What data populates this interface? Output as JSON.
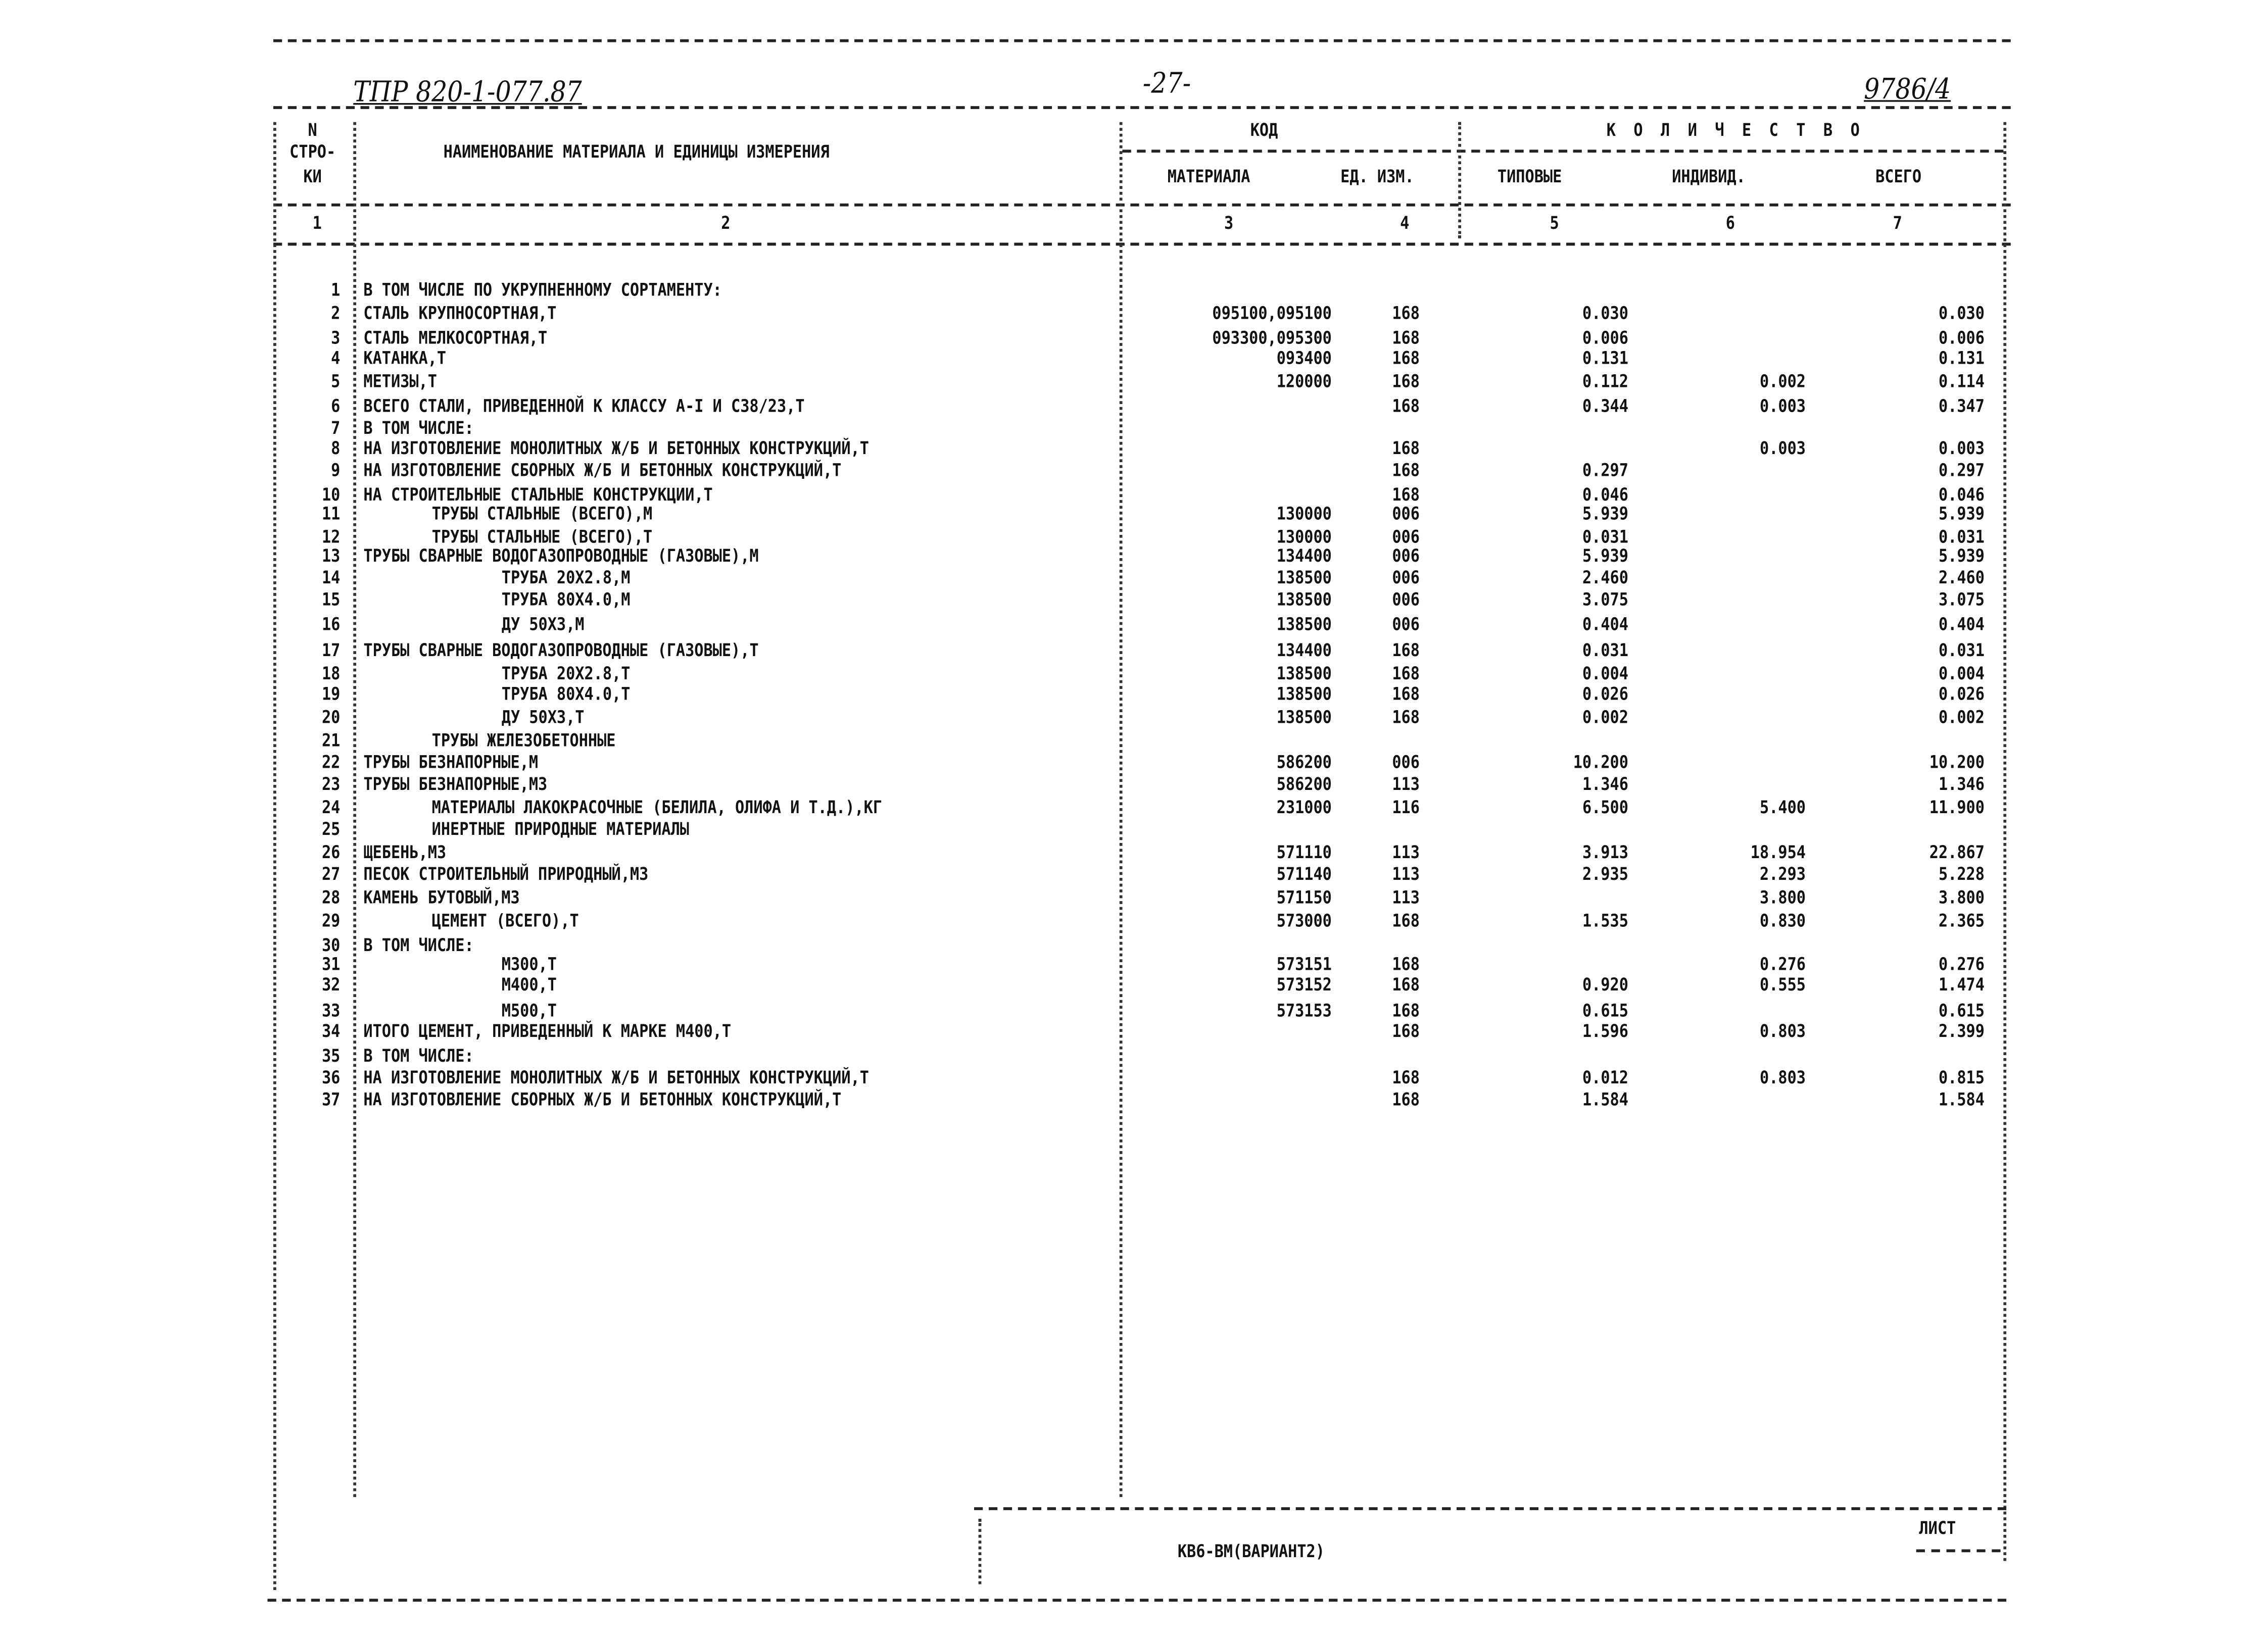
{
  "header": {
    "doc_number": "ТПР 820-1-077.87",
    "page": "-27-",
    "sheet_ref": "9786/4"
  },
  "columns": {
    "num": [
      "N",
      "СТРО-",
      "КИ"
    ],
    "name": "НАИМЕНОВАНИЕ МАТЕРИАЛА И ЕДИНИЦЫ ИЗМЕРЕНИЯ",
    "code": "КОД",
    "quantity": "К О Л И Ч Е С Т В О",
    "material": "МАТЕРИАЛА",
    "unit": "ЕД. ИЗМ.",
    "typical": "ТИПОВЫЕ",
    "individual": "ИНДИВИД.",
    "total": "ВСЕГО",
    "numbers": [
      "1",
      "2",
      "3",
      "4",
      "5",
      "6",
      "7"
    ]
  },
  "rows": [
    {
      "n": "1",
      "name": "В ТОМ ЧИСЛЕ ПО УКРУПНЕННОМУ СОРТАМЕНТУ:",
      "lvl": 0,
      "code": "",
      "unit": "",
      "typ": "",
      "ind": "",
      "tot": ""
    },
    {
      "n": "2",
      "name": "СТАЛЬ КРУПНОСОРТНАЯ,Т",
      "lvl": 0,
      "code": "095100,095100",
      "unit": "168",
      "typ": "0.030",
      "ind": "",
      "tot": "0.030"
    },
    {
      "n": "3",
      "name": "СТАЛЬ МЕЛКОСОРТНАЯ,Т",
      "lvl": 0,
      "code": "093300,095300",
      "unit": "168",
      "typ": "0.006",
      "ind": "",
      "tot": "0.006"
    },
    {
      "n": "4",
      "name": "КАТАНКА,Т",
      "lvl": 0,
      "code": "093400",
      "unit": "168",
      "typ": "0.131",
      "ind": "",
      "tot": "0.131"
    },
    {
      "n": "5",
      "name": "МЕТИЗЫ,Т",
      "lvl": 0,
      "code": "120000",
      "unit": "168",
      "typ": "0.112",
      "ind": "0.002",
      "tot": "0.114"
    },
    {
      "n": "6",
      "name": "ВСЕГО СТАЛИ, ПРИВЕДЕННОЙ К КЛАССУ А-I И С38/23,Т",
      "lvl": 0,
      "code": "",
      "unit": "168",
      "typ": "0.344",
      "ind": "0.003",
      "tot": "0.347"
    },
    {
      "n": "7",
      "name": "В ТОМ ЧИСЛЕ:",
      "lvl": 0,
      "code": "",
      "unit": "",
      "typ": "",
      "ind": "",
      "tot": ""
    },
    {
      "n": "8",
      "name": "НА ИЗГОТОВЛЕНИЕ МОНОЛИТНЫХ Ж/Б И БЕТОННЫХ КОНСТРУКЦИЙ,Т",
      "lvl": 0,
      "code": "",
      "unit": "168",
      "typ": "",
      "ind": "0.003",
      "tot": "0.003"
    },
    {
      "n": "9",
      "name": "НА ИЗГОТОВЛЕНИЕ СБОРНЫХ Ж/Б И БЕТОННЫХ КОНСТРУКЦИЙ,Т",
      "lvl": 0,
      "code": "",
      "unit": "168",
      "typ": "0.297",
      "ind": "",
      "tot": "0.297"
    },
    {
      "n": "10",
      "name": "НА СТРОИТЕЛЬНЫЕ СТАЛЬНЫЕ КОНСТРУКЦИИ,Т",
      "lvl": 0,
      "code": "",
      "unit": "168",
      "typ": "0.046",
      "ind": "",
      "tot": "0.046"
    },
    {
      "n": "11",
      "name": "ТРУБЫ СТАЛЬНЫЕ (ВСЕГО),М",
      "lvl": 1,
      "code": "130000",
      "unit": "006",
      "typ": "5.939",
      "ind": "",
      "tot": "5.939"
    },
    {
      "n": "12",
      "name": "ТРУБЫ СТАЛЬНЫЕ (ВСЕГО),Т",
      "lvl": 1,
      "code": "130000",
      "unit": "006",
      "typ": "0.031",
      "ind": "",
      "tot": "0.031"
    },
    {
      "n": "13",
      "name": "ТРУБЫ СВАРНЫЕ ВОДОГАЗОПРОВОДНЫЕ (ГАЗОВЫЕ),М",
      "lvl": 0,
      "code": "134400",
      "unit": "006",
      "typ": "5.939",
      "ind": "",
      "tot": "5.939"
    },
    {
      "n": "14",
      "name": "ТРУБА 20Х2.8,М",
      "lvl": 2,
      "code": "138500",
      "unit": "006",
      "typ": "2.460",
      "ind": "",
      "tot": "2.460"
    },
    {
      "n": "15",
      "name": "ТРУБА 80Х4.0,М",
      "lvl": 2,
      "code": "138500",
      "unit": "006",
      "typ": "3.075",
      "ind": "",
      "tot": "3.075"
    },
    {
      "n": "16",
      "name": "ДУ 50Х3,М",
      "lvl": 2,
      "code": "138500",
      "unit": "006",
      "typ": "0.404",
      "ind": "",
      "tot": "0.404"
    },
    {
      "n": "17",
      "name": "ТРУБЫ СВАРНЫЕ ВОДОГАЗОПРОВОДНЫЕ (ГАЗОВЫЕ),Т",
      "lvl": 0,
      "code": "134400",
      "unit": "168",
      "typ": "0.031",
      "ind": "",
      "tot": "0.031"
    },
    {
      "n": "18",
      "name": "ТРУБА 20Х2.8,Т",
      "lvl": 2,
      "code": "138500",
      "unit": "168",
      "typ": "0.004",
      "ind": "",
      "tot": "0.004"
    },
    {
      "n": "19",
      "name": "ТРУБА 80Х4.0,Т",
      "lvl": 2,
      "code": "138500",
      "unit": "168",
      "typ": "0.026",
      "ind": "",
      "tot": "0.026"
    },
    {
      "n": "20",
      "name": "ДУ 50Х3,Т",
      "lvl": 2,
      "code": "138500",
      "unit": "168",
      "typ": "0.002",
      "ind": "",
      "tot": "0.002"
    },
    {
      "n": "21",
      "name": "ТРУБЫ ЖЕЛЕЗОБЕТОННЫЕ",
      "lvl": 1,
      "code": "",
      "unit": "",
      "typ": "",
      "ind": "",
      "tot": ""
    },
    {
      "n": "22",
      "name": "ТРУБЫ БЕЗНАПОРНЫЕ,М",
      "lvl": 0,
      "code": "586200",
      "unit": "006",
      "typ": "10.200",
      "ind": "",
      "tot": "10.200"
    },
    {
      "n": "23",
      "name": "ТРУБЫ БЕЗНАПОРНЫЕ,М3",
      "lvl": 0,
      "code": "586200",
      "unit": "113",
      "typ": "1.346",
      "ind": "",
      "tot": "1.346"
    },
    {
      "n": "24",
      "name": "МАТЕРИАЛЫ ЛАКОКРАСОЧНЫЕ (БЕЛИЛА, ОЛИФА И Т.Д.),КГ",
      "lvl": 1,
      "code": "231000",
      "unit": "116",
      "typ": "6.500",
      "ind": "5.400",
      "tot": "11.900"
    },
    {
      "n": "25",
      "name": "ИНЕРТНЫЕ ПРИРОДНЫЕ МАТЕРИАЛЫ",
      "lvl": 1,
      "code": "",
      "unit": "",
      "typ": "",
      "ind": "",
      "tot": ""
    },
    {
      "n": "26",
      "name": "ЩЕБЕНЬ,М3",
      "lvl": 0,
      "code": "571110",
      "unit": "113",
      "typ": "3.913",
      "ind": "18.954",
      "tot": "22.867"
    },
    {
      "n": "27",
      "name": "ПЕСОК СТРОИТЕЛЬНЫЙ ПРИРОДНЫЙ,М3",
      "lvl": 0,
      "code": "571140",
      "unit": "113",
      "typ": "2.935",
      "ind": "2.293",
      "tot": "5.228"
    },
    {
      "n": "28",
      "name": "КАМЕНЬ БУТОВЫЙ,М3",
      "lvl": 0,
      "code": "571150",
      "unit": "113",
      "typ": "",
      "ind": "3.800",
      "tot": "3.800"
    },
    {
      "n": "29",
      "name": "ЦЕМЕНТ (ВСЕГО),Т",
      "lvl": 1,
      "code": "573000",
      "unit": "168",
      "typ": "1.535",
      "ind": "0.830",
      "tot": "2.365"
    },
    {
      "n": "30",
      "name": "В ТОМ ЧИСЛЕ:",
      "lvl": 0,
      "code": "",
      "unit": "",
      "typ": "",
      "ind": "",
      "tot": ""
    },
    {
      "n": "31",
      "name": "М300,Т",
      "lvl": 2,
      "code": "573151",
      "unit": "168",
      "typ": "",
      "ind": "0.276",
      "tot": "0.276"
    },
    {
      "n": "32",
      "name": "М400,Т",
      "lvl": 2,
      "code": "573152",
      "unit": "168",
      "typ": "0.920",
      "ind": "0.555",
      "tot": "1.474"
    },
    {
      "n": "33",
      "name": "М500,Т",
      "lvl": 2,
      "code": "573153",
      "unit": "168",
      "typ": "0.615",
      "ind": "",
      "tot": "0.615"
    },
    {
      "n": "34",
      "name": "ИТОГО ЦЕМЕНТ, ПРИВЕДЕННЫЙ К МАРКЕ М400,Т",
      "lvl": 0,
      "code": "",
      "unit": "168",
      "typ": "1.596",
      "ind": "0.803",
      "tot": "2.399"
    },
    {
      "n": "35",
      "name": "В ТОМ ЧИСЛЕ:",
      "lvl": 0,
      "code": "",
      "unit": "",
      "typ": "",
      "ind": "",
      "tot": ""
    },
    {
      "n": "36",
      "name": "НА ИЗГОТОВЛЕНИЕ МОНОЛИТНЫХ Ж/Б И БЕТОННЫХ КОНСТРУКЦИЙ,Т",
      "lvl": 0,
      "code": "",
      "unit": "168",
      "typ": "0.012",
      "ind": "0.803",
      "tot": "0.815"
    },
    {
      "n": "37",
      "name": "НА ИЗГОТОВЛЕНИЕ СБОРНЫХ Ж/Б И БЕТОННЫХ КОНСТРУКЦИЙ,Т",
      "lvl": 0,
      "code": "",
      "unit": "168",
      "typ": "1.584",
      "ind": "",
      "tot": "1.584"
    }
  ],
  "footer": {
    "title": "КВ6-ВМ(ВАРИАНТ2)",
    "sheet_label": "ЛИСТ"
  }
}
